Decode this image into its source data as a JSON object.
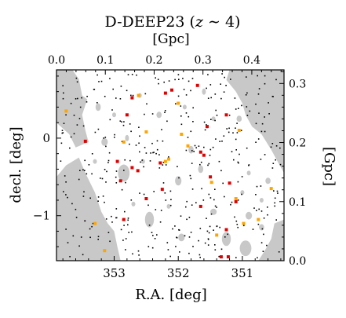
{
  "chart_data": {
    "type": "scatter",
    "title": {
      "prefix": "D-DEEP23 (",
      "var": "z",
      "suffix": " ∼ 4)"
    },
    "xlabel": "R.A. [deg]",
    "ylabel": "decl. [deg]",
    "x2label": "[Gpc]",
    "y2label": "[Gpc]",
    "xlim": [
      353.9,
      350.35
    ],
    "ylim": [
      -1.58,
      0.88
    ],
    "xticks": [
      {
        "value": 353,
        "label": "353"
      },
      {
        "value": 352,
        "label": "352"
      },
      {
        "value": 351,
        "label": "351"
      }
    ],
    "yticks": [
      {
        "value": 0,
        "label": "0"
      },
      {
        "value": -1,
        "label": "−1"
      }
    ],
    "x2lim": [
      0,
      0.466
    ],
    "x2ticks": [
      {
        "value": 0.0,
        "label": "0.0"
      },
      {
        "value": 0.1,
        "label": "0.1"
      },
      {
        "value": 0.2,
        "label": "0.2"
      },
      {
        "value": 0.3,
        "label": "0.3"
      },
      {
        "value": 0.4,
        "label": "0.4"
      }
    ],
    "y2lim": [
      0,
      0.323
    ],
    "y2ticks": [
      {
        "value": 0.0,
        "label": "0.0"
      },
      {
        "value": 0.1,
        "label": "0.1"
      },
      {
        "value": 0.2,
        "label": "0.2"
      },
      {
        "value": 0.3,
        "label": "0.3"
      }
    ],
    "colors": {
      "mask": "#c8c8c8",
      "field": "#ffffff",
      "red": "#e00000",
      "orange": "#ffa500",
      "black": "#000000"
    },
    "masked_regions": [
      [
        [
          353.9,
          0.88
        ],
        [
          353.65,
          0.88
        ],
        [
          353.55,
          0.76
        ],
        [
          353.5,
          0.55
        ],
        [
          353.42,
          0.5
        ],
        [
          353.5,
          0.3
        ],
        [
          353.45,
          0.1
        ],
        [
          353.4,
          -0.05
        ],
        [
          353.6,
          -0.12
        ],
        [
          353.7,
          0.05
        ],
        [
          353.9,
          0.2
        ]
      ],
      [
        [
          353.9,
          -0.5
        ],
        [
          353.75,
          -0.35
        ],
        [
          353.55,
          -0.25
        ],
        [
          353.45,
          -0.45
        ],
        [
          353.3,
          -0.7
        ],
        [
          353.2,
          -0.95
        ],
        [
          353.1,
          -1.1
        ],
        [
          353.0,
          -1.2
        ],
        [
          352.95,
          -1.4
        ],
        [
          352.9,
          -1.58
        ],
        [
          353.9,
          -1.58
        ]
      ],
      [
        [
          351.2,
          0.88
        ],
        [
          351.25,
          0.75
        ],
        [
          351.1,
          0.6
        ],
        [
          351.0,
          0.45
        ],
        [
          350.95,
          0.3
        ],
        [
          350.85,
          0.15
        ],
        [
          350.7,
          0.05
        ],
        [
          350.55,
          -0.15
        ],
        [
          350.45,
          -0.3
        ],
        [
          350.35,
          -0.45
        ],
        [
          350.35,
          0.88
        ]
      ],
      [
        [
          350.35,
          -1.05
        ],
        [
          350.5,
          -1.1
        ],
        [
          350.55,
          -1.3
        ],
        [
          350.65,
          -1.45
        ],
        [
          350.75,
          -1.58
        ],
        [
          350.35,
          -1.58
        ]
      ]
    ],
    "holes": [
      [
        352.85,
        -0.45,
        0.09,
        0.11
      ],
      [
        352.0,
        -0.55,
        0.05,
        0.06
      ],
      [
        352.45,
        -1.05,
        0.07,
        0.1
      ],
      [
        351.25,
        -1.3,
        0.07,
        0.09
      ],
      [
        350.95,
        -1.42,
        0.09,
        0.1
      ],
      [
        353.15,
        -0.05,
        0.05,
        0.05
      ],
      [
        351.95,
        -1.28,
        0.05,
        0.05
      ],
      [
        351.45,
        -0.95,
        0.05,
        0.04
      ],
      [
        351.8,
        -0.15,
        0.04,
        0.05
      ],
      [
        352.8,
        0.0,
        0.03,
        0.04
      ],
      [
        351.05,
        0.25,
        0.04,
        0.04
      ],
      [
        352.55,
        -0.3,
        0.03,
        0.03
      ],
      [
        350.9,
        -1.0,
        0.05,
        0.05
      ],
      [
        351.65,
        -0.4,
        0.04,
        0.05
      ],
      [
        353.6,
        0.45,
        0.04,
        0.05
      ],
      [
        352.3,
        0.3,
        0.04,
        0.04
      ],
      [
        351.9,
        0.4,
        0.03,
        0.03
      ],
      [
        353.25,
        0.4,
        0.04,
        0.05
      ],
      [
        350.6,
        -0.55,
        0.04,
        0.04
      ],
      [
        352.6,
        0.55,
        0.03,
        0.03
      ],
      [
        351.6,
        0.6,
        0.03,
        0.04
      ],
      [
        350.7,
        -0.8,
        0.03,
        0.03
      ],
      [
        351.0,
        -0.7,
        0.03,
        0.03
      ],
      [
        353.3,
        -0.3,
        0.03,
        0.03
      ],
      [
        352.15,
        -0.88,
        0.03,
        0.03
      ],
      [
        350.7,
        -1.15,
        0.04,
        0.04
      ],
      [
        353.0,
        0.3,
        0.03,
        0.03
      ],
      [
        351.45,
        0.25,
        0.03,
        0.03
      ],
      [
        352.7,
        -0.85,
        0.03,
        0.03
      ],
      [
        350.9,
        -0.45,
        0.03,
        0.03
      ]
    ],
    "series": [
      {
        "color": "red",
        "points": [
          [
            351.7,
            0.68
          ],
          [
            352.1,
            0.62
          ],
          [
            352.2,
            0.58
          ],
          [
            352.72,
            0.52
          ],
          [
            351.25,
            0.3
          ],
          [
            353.45,
            -0.04
          ],
          [
            351.6,
            -0.22
          ],
          [
            351.65,
            -0.18
          ],
          [
            352.95,
            -0.3
          ],
          [
            352.72,
            -0.38
          ],
          [
            352.63,
            -0.42
          ],
          [
            352.28,
            -0.32
          ],
          [
            351.5,
            -0.5
          ],
          [
            352.25,
            -0.66
          ],
          [
            352.5,
            -0.78
          ],
          [
            352.85,
            -1.05
          ],
          [
            351.65,
            -0.88
          ],
          [
            351.1,
            -0.82
          ],
          [
            351.25,
            -1.18
          ],
          [
            351.33,
            -1.53
          ],
          [
            351.22,
            -1.53
          ],
          [
            352.8,
            0.3
          ],
          [
            351.55,
            0.15
          ],
          [
            352.9,
            -0.55
          ],
          [
            351.2,
            -0.58
          ]
        ]
      },
      {
        "color": "orange",
        "points": [
          [
            352.62,
            0.55
          ],
          [
            353.75,
            0.35
          ],
          [
            352.0,
            0.45
          ],
          [
            351.05,
            0.1
          ],
          [
            352.85,
            -0.05
          ],
          [
            352.2,
            -0.3
          ],
          [
            352.15,
            -0.27
          ],
          [
            351.85,
            -0.1
          ],
          [
            351.48,
            -0.57
          ],
          [
            351.1,
            -0.78
          ],
          [
            350.75,
            -1.05
          ],
          [
            353.15,
            -1.45
          ],
          [
            351.4,
            -1.25
          ],
          [
            350.98,
            -1.1
          ],
          [
            352.5,
            0.08
          ],
          [
            351.95,
            0.05
          ],
          [
            350.55,
            -0.65
          ],
          [
            353.3,
            -1.1
          ]
        ]
      }
    ]
  }
}
